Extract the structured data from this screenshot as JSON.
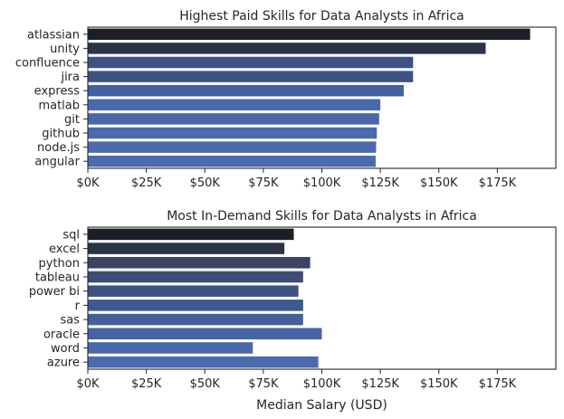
{
  "chart_data": [
    {
      "type": "bar",
      "orientation": "horizontal",
      "title": "Highest Paid Skills for Data Analysts in Africa",
      "xlabel": "",
      "ylabel": "",
      "xlim": [
        0,
        200000
      ],
      "xticks": [
        0,
        25000,
        50000,
        75000,
        100000,
        125000,
        150000,
        175000
      ],
      "xtick_labels": [
        "$0K",
        "$25K",
        "$50K",
        "$75K",
        "$100K",
        "$125K",
        "$150K",
        "$175K"
      ],
      "categories": [
        "atlassian",
        "unity",
        "confluence",
        "jira",
        "express",
        "matlab",
        "git",
        "github",
        "node.js",
        "angular"
      ],
      "values": [
        189000,
        170000,
        139000,
        139000,
        135000,
        125000,
        124500,
        123500,
        123200,
        123000
      ],
      "colors": [
        "#1c1f26",
        "#2b3446",
        "#3f5284",
        "#3f5284",
        "#4360a0",
        "#4a68aa",
        "#4a68aa",
        "#4b6aad",
        "#4c6baf",
        "#4c6baf"
      ],
      "grid": false,
      "legend": "none"
    },
    {
      "type": "bar",
      "orientation": "horizontal",
      "title": "Most In-Demand Skills for Data Analysts in Africa",
      "xlabel": "Median Salary (USD)",
      "ylabel": "",
      "xlim": [
        0,
        200000
      ],
      "xticks": [
        0,
        25000,
        50000,
        75000,
        100000,
        125000,
        150000,
        175000
      ],
      "xtick_labels": [
        "$0K",
        "$25K",
        "$50K",
        "$75K",
        "$100K",
        "$125K",
        "$150K",
        "$175K"
      ],
      "categories": [
        "sql",
        "excel",
        "python",
        "tableau",
        "power bi",
        "r",
        "sas",
        "oracle",
        "word",
        "azure"
      ],
      "values": [
        88000,
        84000,
        95000,
        92000,
        90000,
        92000,
        92000,
        100000,
        70500,
        98500
      ],
      "colors": [
        "#1c1f26",
        "#2b3446",
        "#3a4463",
        "#3d4d75",
        "#3f5284",
        "#405890",
        "#435f9c",
        "#4664a5",
        "#4a68aa",
        "#4c6baf"
      ],
      "grid": false,
      "legend": "none"
    }
  ]
}
